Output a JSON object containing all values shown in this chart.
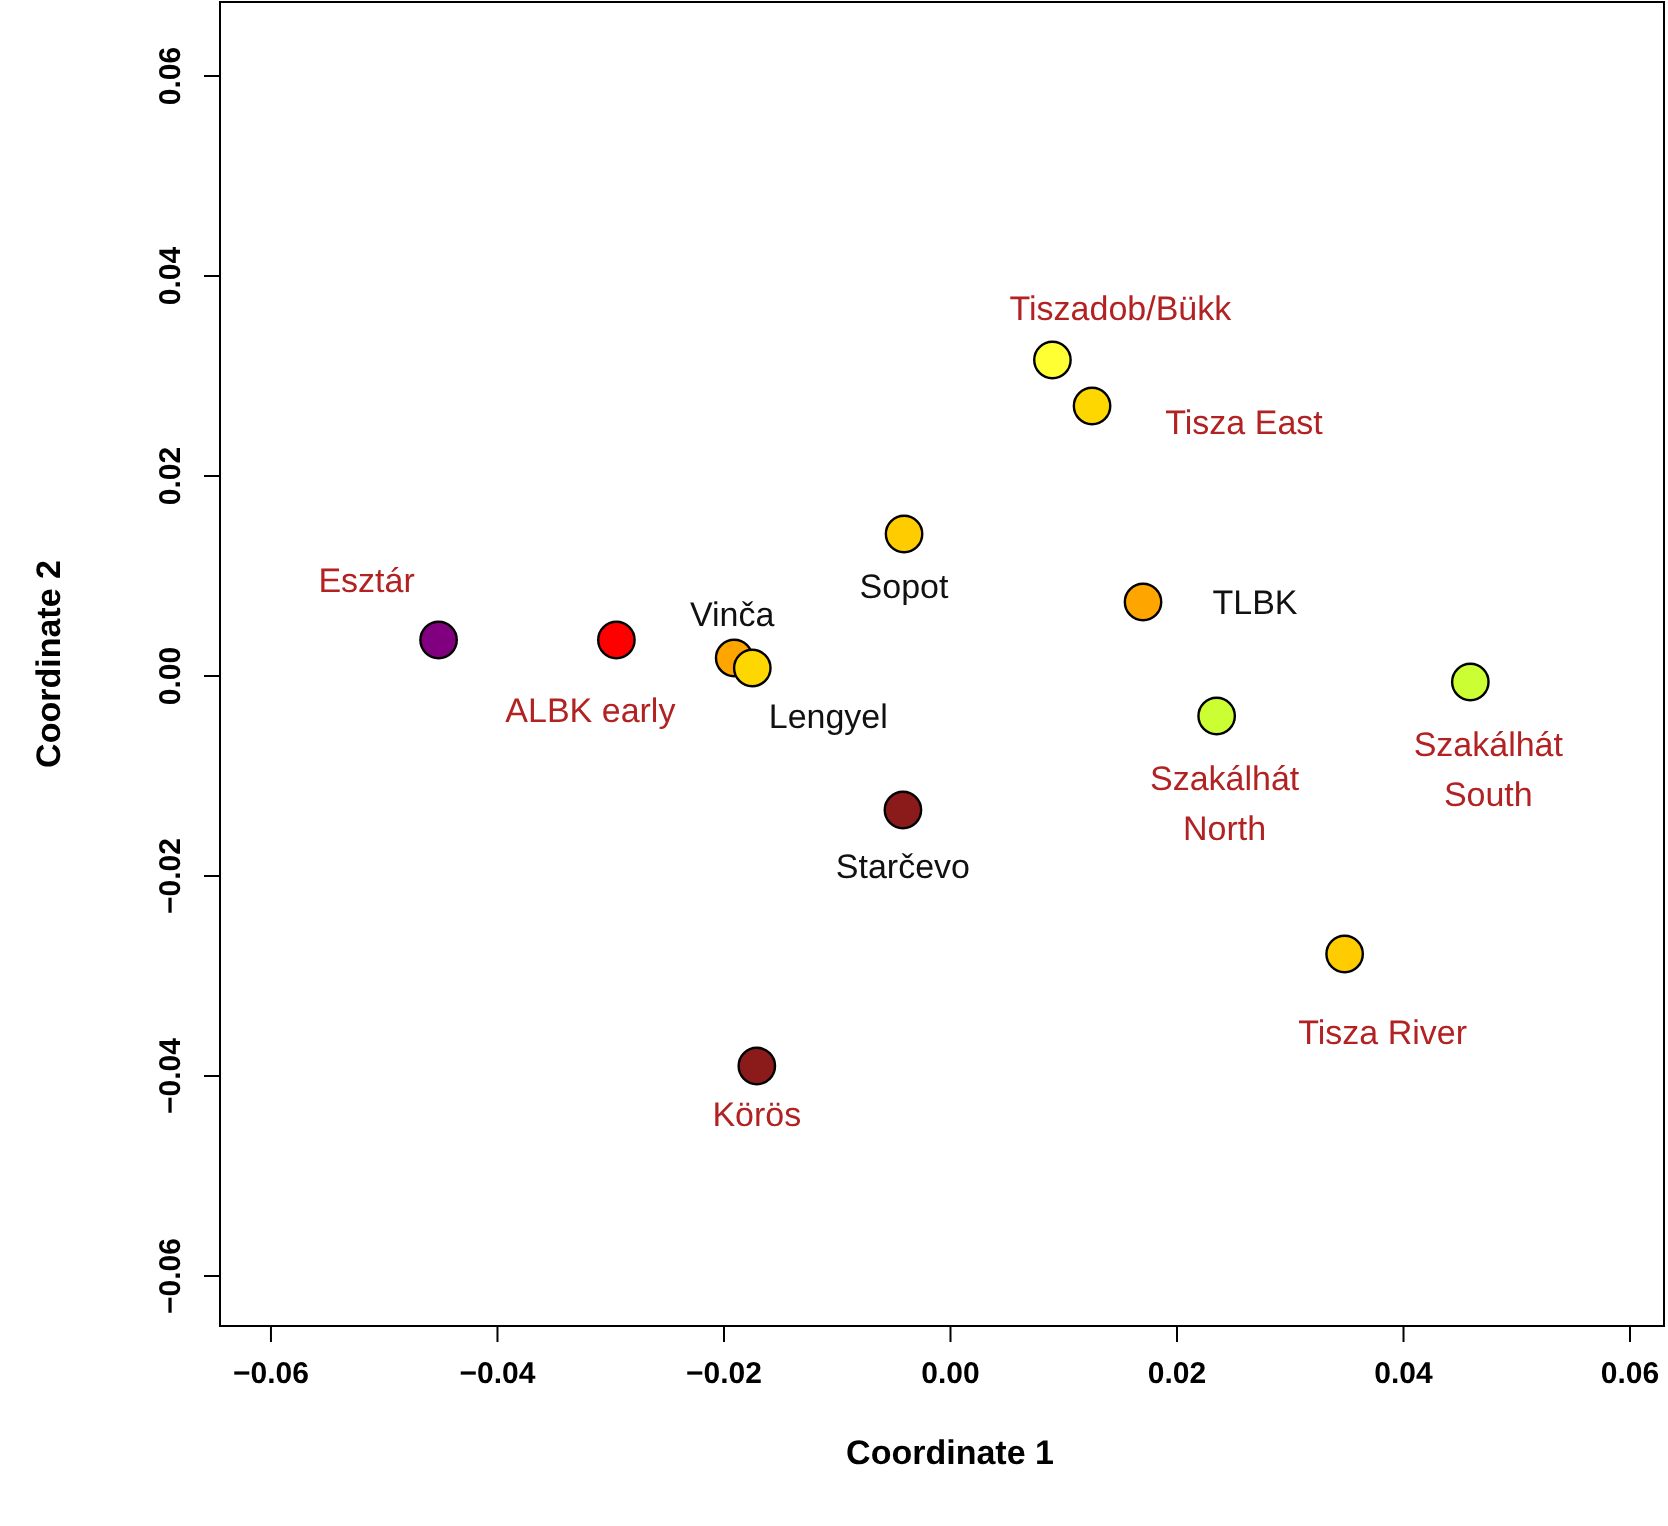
{
  "chart_data": {
    "type": "scatter",
    "xlabel": "Coordinate 1",
    "ylabel": "Coordinate 2",
    "xlim": [
      -0.0645,
      0.063
    ],
    "ylim": [
      -0.065,
      0.0674
    ],
    "xticks": [
      {
        "value": -0.06,
        "label": "−0.06"
      },
      {
        "value": -0.04,
        "label": "−0.04"
      },
      {
        "value": -0.02,
        "label": "−0.02"
      },
      {
        "value": 0,
        "label": "0.00"
      },
      {
        "value": 0.02,
        "label": "0.02"
      },
      {
        "value": 0.04,
        "label": "0.04"
      },
      {
        "value": 0.06,
        "label": "0.06"
      }
    ],
    "yticks": [
      {
        "value": -0.06,
        "label": "−0.06"
      },
      {
        "value": -0.04,
        "label": "−0.04"
      },
      {
        "value": -0.02,
        "label": "−0.02"
      },
      {
        "value": 0,
        "label": "0.00"
      },
      {
        "value": 0.02,
        "label": "0.02"
      },
      {
        "value": 0.04,
        "label": "0.04"
      },
      {
        "value": 0.06,
        "label": "0.06"
      }
    ],
    "grid": false,
    "marker": "circle",
    "x": [
      -0.0452,
      -0.0295,
      -0.0191,
      -0.0175,
      -0.0041,
      -0.0042,
      -0.0171,
      0.009,
      0.0125,
      0.017,
      0.0235,
      0.0459,
      0.0348
    ],
    "values": [
      0.0036,
      0.0036,
      0.0018,
      0.0008,
      0.0142,
      -0.0134,
      -0.039,
      0.0316,
      0.027,
      0.0074,
      -0.004,
      -0.0006,
      -0.0278
    ],
    "colors": [
      "#800080",
      "#ff0000",
      "#ffa500",
      "#ffd700",
      "#ffcc00",
      "#8b1a1a",
      "#8b1a1a",
      "#ffff33",
      "#ffd700",
      "#ffa500",
      "#ccff33",
      "#ccff33",
      "#ffcc00"
    ],
    "annotations": [
      {
        "text": "Esztár",
        "x": -0.0452,
        "y": 0.0036
      },
      {
        "text": "ALBK early",
        "x": -0.0295,
        "y": 0.0036
      },
      {
        "text": "Vinča",
        "x": -0.0191,
        "y": 0.0018
      },
      {
        "text": "Lengyel",
        "x": -0.0175,
        "y": 0.0008
      },
      {
        "text": "Sopot",
        "x": -0.0041,
        "y": 0.0142
      },
      {
        "text": "Starčevo",
        "x": -0.0042,
        "y": -0.0134
      },
      {
        "text": "Körös",
        "x": -0.0171,
        "y": -0.039
      },
      {
        "text": "Tiszadob/Bükk",
        "x": 0.009,
        "y": 0.0316
      },
      {
        "text": "Tisza East",
        "x": 0.0125,
        "y": 0.027
      },
      {
        "text": "TLBK",
        "x": 0.017,
        "y": 0.0074
      },
      {
        "text": "Szakálhát North",
        "x": 0.0235,
        "y": -0.004
      },
      {
        "text": "Szakálhát South",
        "x": 0.0459,
        "y": -0.0006
      },
      {
        "text": "Tisza River",
        "x": 0.0348,
        "y": -0.0278
      }
    ]
  }
}
